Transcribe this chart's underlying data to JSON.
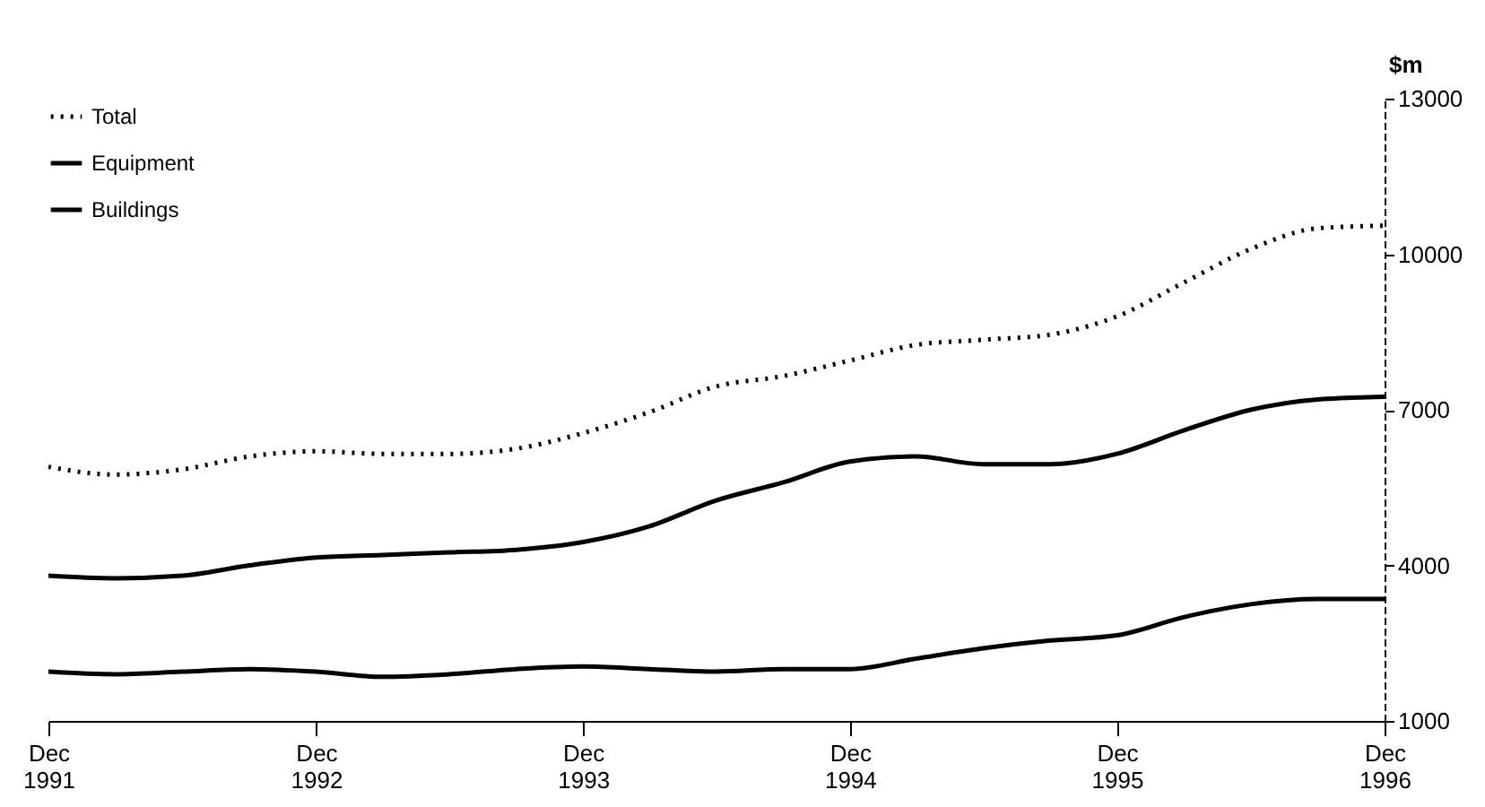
{
  "chart_data": {
    "type": "line",
    "ylabel": "$m",
    "x": [
      "1991-12",
      "1992-03",
      "1992-06",
      "1992-09",
      "1992-12",
      "1993-03",
      "1993-06",
      "1993-09",
      "1993-12",
      "1994-03",
      "1994-06",
      "1994-09",
      "1994-12",
      "1995-03",
      "1995-06",
      "1995-09",
      "1995-12",
      "1996-03",
      "1996-06",
      "1996-09",
      "1996-12"
    ],
    "series": [
      {
        "name": "Total",
        "color": "#000000",
        "line_style": "dotted",
        "values": [
          5900,
          5750,
          5850,
          6100,
          6200,
          6150,
          6150,
          6250,
          6550,
          6950,
          7450,
          7650,
          7950,
          8250,
          8350,
          8450,
          8800,
          9450,
          10100,
          10500,
          10550
        ]
      },
      {
        "name": "Equipment",
        "color": "#000000",
        "line_style": "solid",
        "values": [
          3800,
          3750,
          3800,
          4000,
          4150,
          4200,
          4250,
          4300,
          4450,
          4750,
          5250,
          5600,
          6000,
          6100,
          5950,
          5950,
          6150,
          6600,
          7000,
          7200,
          7250
        ]
      },
      {
        "name": "Buildings",
        "color": "#000000",
        "line_style": "solid",
        "values": [
          1950,
          1900,
          1950,
          2000,
          1950,
          1850,
          1900,
          2000,
          2050,
          2000,
          1950,
          2000,
          2000,
          2200,
          2400,
          2550,
          2650,
          3000,
          3250,
          3350,
          3350
        ]
      }
    ],
    "ylim": [
      1000,
      13000
    ],
    "yticks": [
      1000,
      4000,
      7000,
      10000,
      13000
    ],
    "xlim": [
      "1991-12",
      "1996-12"
    ],
    "xticks": [
      {
        "value": "1991-12",
        "label": "Dec 1991"
      },
      {
        "value": "1992-12",
        "label": "Dec 1992"
      },
      {
        "value": "1993-12",
        "label": "Dec 1993"
      },
      {
        "value": "1994-12",
        "label": "Dec 1994"
      },
      {
        "value": "1995-12",
        "label": "Dec 1995"
      },
      {
        "value": "1996-12",
        "label": "Dec 1996"
      }
    ],
    "grid": false,
    "legend": "top left",
    "marker": "none"
  }
}
